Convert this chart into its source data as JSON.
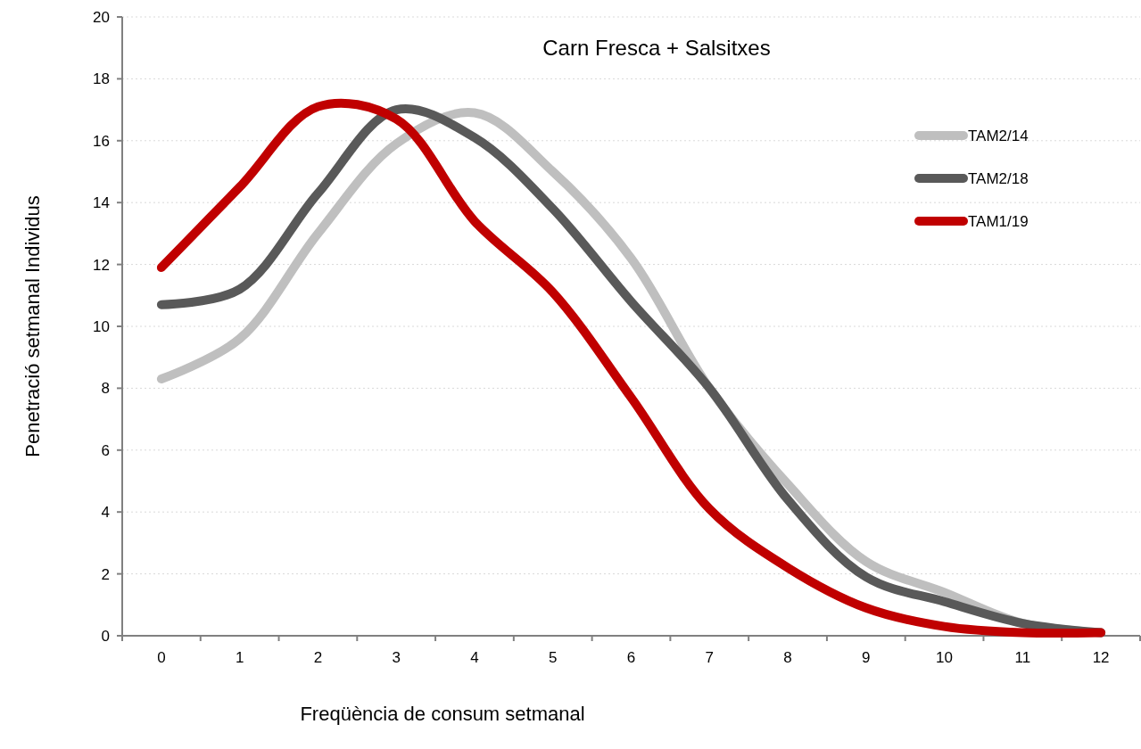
{
  "chart_data": {
    "type": "line",
    "title": "Carn Fresca + Salsitxes",
    "xlabel": "Freqüència de consum setmanal",
    "ylabel": "Penetració setmanal Individus",
    "categories": [
      "0",
      "1",
      "2",
      "3",
      "4",
      "5",
      "6",
      "7",
      "8",
      "9",
      "10",
      "11",
      "12"
    ],
    "series": [
      {
        "name": "TAM2/14",
        "color": "#bfbfbf",
        "values": [
          8.3,
          9.6,
          13.0,
          15.9,
          16.9,
          15.0,
          12.2,
          8.0,
          4.9,
          2.4,
          1.4,
          0.4,
          0.1
        ]
      },
      {
        "name": "TAM2/18",
        "color": "#595959",
        "values": [
          10.7,
          11.2,
          14.3,
          17.0,
          16.1,
          13.8,
          10.8,
          8.0,
          4.4,
          1.9,
          1.1,
          0.4,
          0.1
        ]
      },
      {
        "name": "TAM1/19",
        "color": "#c00000",
        "values": [
          11.9,
          14.5,
          17.1,
          16.7,
          13.4,
          11.1,
          7.7,
          4.1,
          2.2,
          0.9,
          0.3,
          0.1,
          0.1
        ]
      }
    ],
    "ylim": [
      0,
      20
    ],
    "yticks": [
      0,
      2,
      4,
      6,
      8,
      10,
      12,
      14,
      16,
      18,
      20
    ],
    "grid": "y",
    "legend": "top right",
    "line_style": "solid"
  }
}
